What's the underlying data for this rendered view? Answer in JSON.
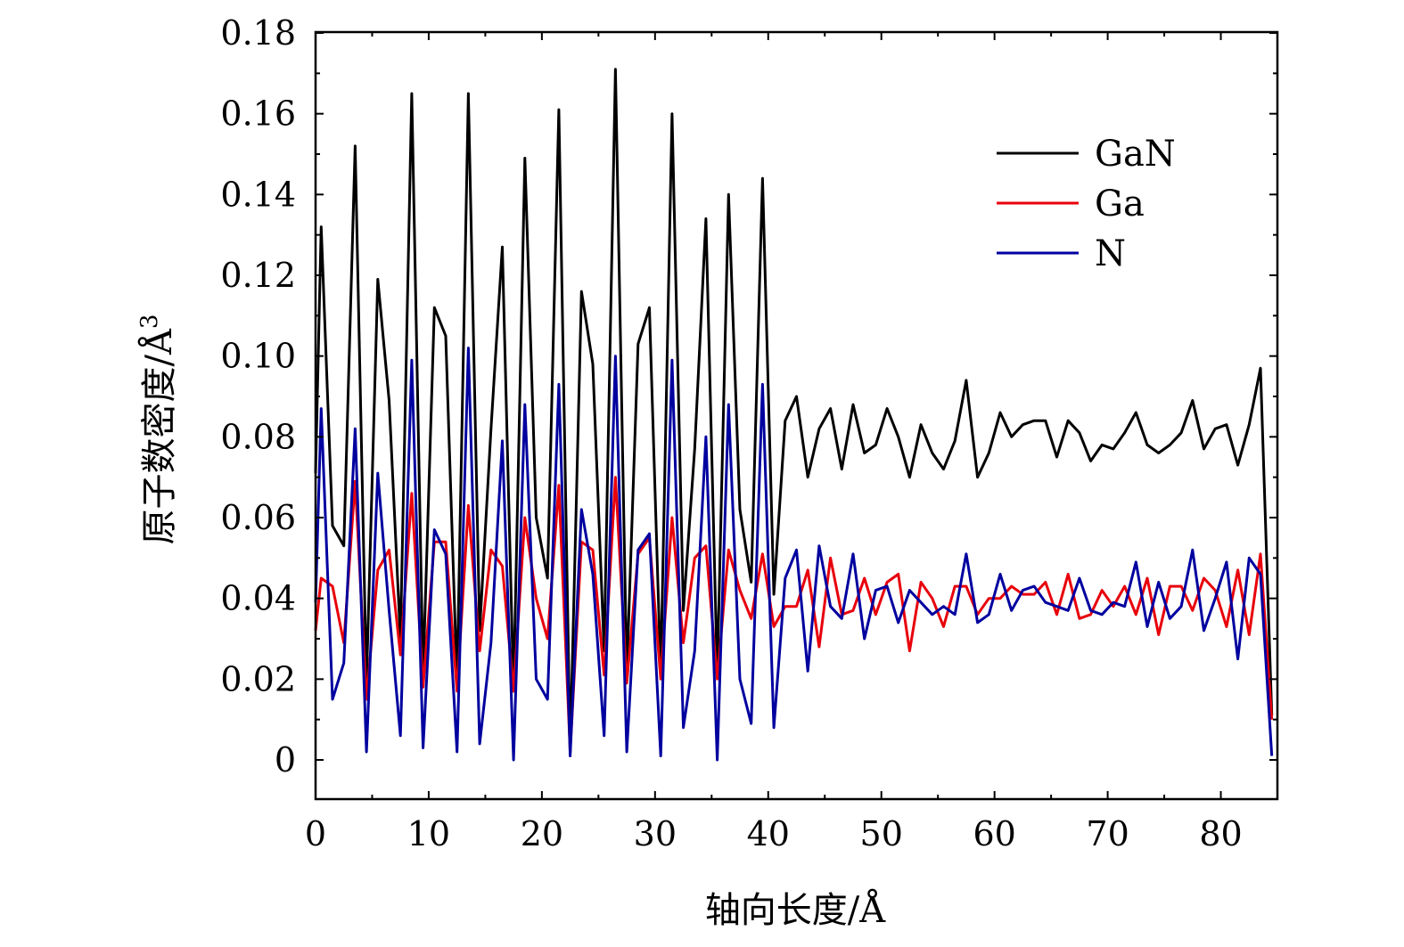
{
  "chart_data": {
    "type": "line",
    "title": "",
    "xlabel": "轴向长度/Å",
    "ylabel_main": "原子数密度/Å",
    "ylabel_superscript": "3",
    "xlim": [
      0,
      85
    ],
    "ylim": [
      0,
      0.18
    ],
    "x_ticks": [
      0,
      10,
      20,
      30,
      40,
      50,
      60,
      70,
      80
    ],
    "x_tick_labels": [
      "0",
      "10",
      "20",
      "30",
      "40",
      "50",
      "60",
      "70",
      "80"
    ],
    "y_ticks": [
      0,
      0.02,
      0.04,
      0.06,
      0.08,
      0.1,
      0.12,
      0.14,
      0.16,
      0.18
    ],
    "y_tick_labels": [
      "0",
      "0.02",
      "0.04",
      "0.06",
      "0.08",
      "0.10",
      "0.12",
      "0.14",
      "0.16",
      "0.18"
    ],
    "grid": false,
    "legend_position": "top-right",
    "x": [
      0,
      0.5,
      1.5,
      2.5,
      3.5,
      4.5,
      5.5,
      6.5,
      7.5,
      8.5,
      9.5,
      10.5,
      11.5,
      12.5,
      13.5,
      14.5,
      15.5,
      16.5,
      17.5,
      18.5,
      19.5,
      20.5,
      21.5,
      22.5,
      23.5,
      24.5,
      25.5,
      26.5,
      27.5,
      28.5,
      29.5,
      30.5,
      31.5,
      32.5,
      33.5,
      34.5,
      35.5,
      36.5,
      37.5,
      38.5,
      39.5,
      40.5,
      41.5,
      42.5,
      43.5,
      44.5,
      45.5,
      46.5,
      47.5,
      48.5,
      49.5,
      50.5,
      51.5,
      52.5,
      53.5,
      54.5,
      55.5,
      56.5,
      57.5,
      58.5,
      59.5,
      60.5,
      61.5,
      62.5,
      63.5,
      64.5,
      65.5,
      66.5,
      67.5,
      68.5,
      69.5,
      70.5,
      71.5,
      72.5,
      73.5,
      74.5,
      75.5,
      76.5,
      77.5,
      78.5,
      79.5,
      80.5,
      81.5,
      82.5,
      83.5,
      84.5
    ],
    "series": [
      {
        "name": "GaN",
        "color": "#000000",
        "values": [
          0.071,
          0.132,
          0.058,
          0.053,
          0.152,
          0.019,
          0.119,
          0.089,
          0.03,
          0.165,
          0.021,
          0.112,
          0.105,
          0.019,
          0.165,
          0.032,
          0.082,
          0.127,
          0.017,
          0.149,
          0.06,
          0.045,
          0.161,
          0.002,
          0.116,
          0.098,
          0.027,
          0.171,
          0.021,
          0.103,
          0.112,
          0.021,
          0.16,
          0.037,
          0.077,
          0.134,
          0.021,
          0.14,
          0.062,
          0.044,
          0.144,
          0.041,
          0.084,
          0.09,
          0.07,
          0.082,
          0.087,
          0.072,
          0.088,
          0.076,
          0.078,
          0.087,
          0.08,
          0.07,
          0.083,
          0.076,
          0.072,
          0.079,
          0.094,
          0.07,
          0.076,
          0.086,
          0.08,
          0.083,
          0.084,
          0.084,
          0.075,
          0.084,
          0.081,
          0.074,
          0.078,
          0.077,
          0.081,
          0.086,
          0.078,
          0.076,
          0.078,
          0.081,
          0.089,
          0.077,
          0.082,
          0.083,
          0.073,
          0.083,
          0.097,
          0.011
        ]
      },
      {
        "name": "Ga",
        "color": "#e8000b",
        "values": [
          0.032,
          0.045,
          0.043,
          0.029,
          0.069,
          0.015,
          0.047,
          0.052,
          0.026,
          0.066,
          0.018,
          0.054,
          0.054,
          0.017,
          0.063,
          0.027,
          0.052,
          0.048,
          0.017,
          0.06,
          0.04,
          0.03,
          0.068,
          0.002,
          0.054,
          0.052,
          0.021,
          0.07,
          0.019,
          0.051,
          0.055,
          0.02,
          0.06,
          0.029,
          0.05,
          0.053,
          0.02,
          0.052,
          0.042,
          0.035,
          0.051,
          0.033,
          0.038,
          0.038,
          0.047,
          0.028,
          0.05,
          0.036,
          0.037,
          0.045,
          0.036,
          0.044,
          0.046,
          0.027,
          0.044,
          0.04,
          0.033,
          0.043,
          0.043,
          0.036,
          0.04,
          0.04,
          0.043,
          0.041,
          0.041,
          0.044,
          0.036,
          0.046,
          0.035,
          0.036,
          0.042,
          0.038,
          0.043,
          0.036,
          0.045,
          0.031,
          0.043,
          0.043,
          0.037,
          0.045,
          0.042,
          0.033,
          0.047,
          0.031,
          0.051,
          0.01
        ]
      },
      {
        "name": "N",
        "color": "#00009f",
        "values": [
          0.039,
          0.087,
          0.015,
          0.024,
          0.082,
          0.002,
          0.071,
          0.037,
          0.006,
          0.099,
          0.003,
          0.057,
          0.051,
          0.002,
          0.102,
          0.004,
          0.029,
          0.079,
          0.0,
          0.088,
          0.02,
          0.015,
          0.093,
          0.001,
          0.062,
          0.046,
          0.006,
          0.1,
          0.002,
          0.052,
          0.056,
          0.001,
          0.099,
          0.008,
          0.027,
          0.08,
          0.0,
          0.088,
          0.02,
          0.009,
          0.093,
          0.008,
          0.045,
          0.052,
          0.022,
          0.053,
          0.038,
          0.035,
          0.051,
          0.03,
          0.042,
          0.043,
          0.034,
          0.042,
          0.039,
          0.036,
          0.038,
          0.036,
          0.051,
          0.034,
          0.036,
          0.046,
          0.037,
          0.042,
          0.043,
          0.039,
          0.038,
          0.037,
          0.045,
          0.037,
          0.036,
          0.039,
          0.038,
          0.049,
          0.033,
          0.044,
          0.035,
          0.038,
          0.052,
          0.032,
          0.04,
          0.049,
          0.025,
          0.05,
          0.046,
          0.001
        ]
      }
    ]
  }
}
